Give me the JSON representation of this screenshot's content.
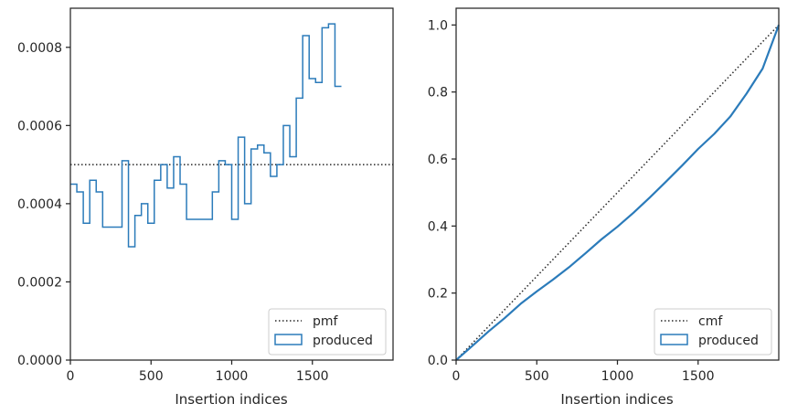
{
  "colors": {
    "produced": "#2b7bba",
    "reference": "#262626",
    "axes": "#262626",
    "legend_border": "#cccccc"
  },
  "chart_data": [
    {
      "type": "histogram-step",
      "xlabel": "Insertion indices",
      "ylabel": "",
      "xlim": [
        0,
        2000
      ],
      "ylim": [
        0,
        0.0009
      ],
      "x_ticks": [
        0,
        500,
        1000,
        1500
      ],
      "x_tick_labels": [
        "0",
        "500",
        "1000",
        "1500"
      ],
      "y_ticks": [
        0,
        0.0002,
        0.0004,
        0.0006,
        0.0008
      ],
      "y_tick_labels": [
        "0.0000",
        "0.0002",
        "0.0004",
        "0.0006",
        "0.0008"
      ],
      "legend_position": "lower-right",
      "reference_line": {
        "name": "pmf",
        "style": "dotted",
        "y": 0.0005
      },
      "series": [
        {
          "name": "produced",
          "style": "step",
          "bin_width": 40,
          "values": [
            0.00045,
            0.00043,
            0.00035,
            0.00046,
            0.00043,
            0.00034,
            0.00034,
            0.00034,
            0.00051,
            0.00029,
            0.00037,
            0.0004,
            0.00035,
            0.00046,
            0.0005,
            0.00044,
            0.00052,
            0.00045,
            0.00036,
            0.00036,
            0.00036,
            0.00036,
            0.00043,
            0.00051,
            0.0005,
            0.00036,
            0.00057,
            0.0004,
            0.00054,
            0.00055,
            0.00053,
            0.00047,
            0.0005,
            0.0006,
            0.00052,
            0.00067,
            0.00083,
            0.00072,
            0.00071,
            0.00085,
            0.00086,
            0.0007
          ]
        }
      ]
    },
    {
      "type": "line",
      "xlabel": "Insertion indices",
      "ylabel": "",
      "xlim": [
        0,
        2000
      ],
      "ylim": [
        0,
        1.05
      ],
      "x_ticks": [
        0,
        500,
        1000,
        1500
      ],
      "x_tick_labels": [
        "0",
        "500",
        "1000",
        "1500"
      ],
      "y_ticks": [
        0,
        0.2,
        0.4,
        0.6,
        0.8,
        1.0
      ],
      "y_tick_labels": [
        "0.0",
        "0.2",
        "0.4",
        "0.6",
        "0.8",
        "1.0"
      ],
      "legend_position": "lower-right",
      "reference_line": {
        "name": "cmf",
        "style": "dotted",
        "x": [
          0,
          2000
        ],
        "y": [
          0,
          1.0
        ]
      },
      "series": [
        {
          "name": "produced",
          "style": "step",
          "x": [
            0,
            100,
            200,
            300,
            400,
            500,
            600,
            700,
            800,
            900,
            1000,
            1100,
            1200,
            1300,
            1400,
            1500,
            1600,
            1700,
            1800,
            1900,
            2000
          ],
          "y": [
            0,
            0.042,
            0.085,
            0.125,
            0.168,
            0.205,
            0.24,
            0.277,
            0.318,
            0.36,
            0.398,
            0.44,
            0.485,
            0.532,
            0.58,
            0.63,
            0.675,
            0.727,
            0.795,
            0.87,
            1.0
          ]
        }
      ]
    }
  ]
}
